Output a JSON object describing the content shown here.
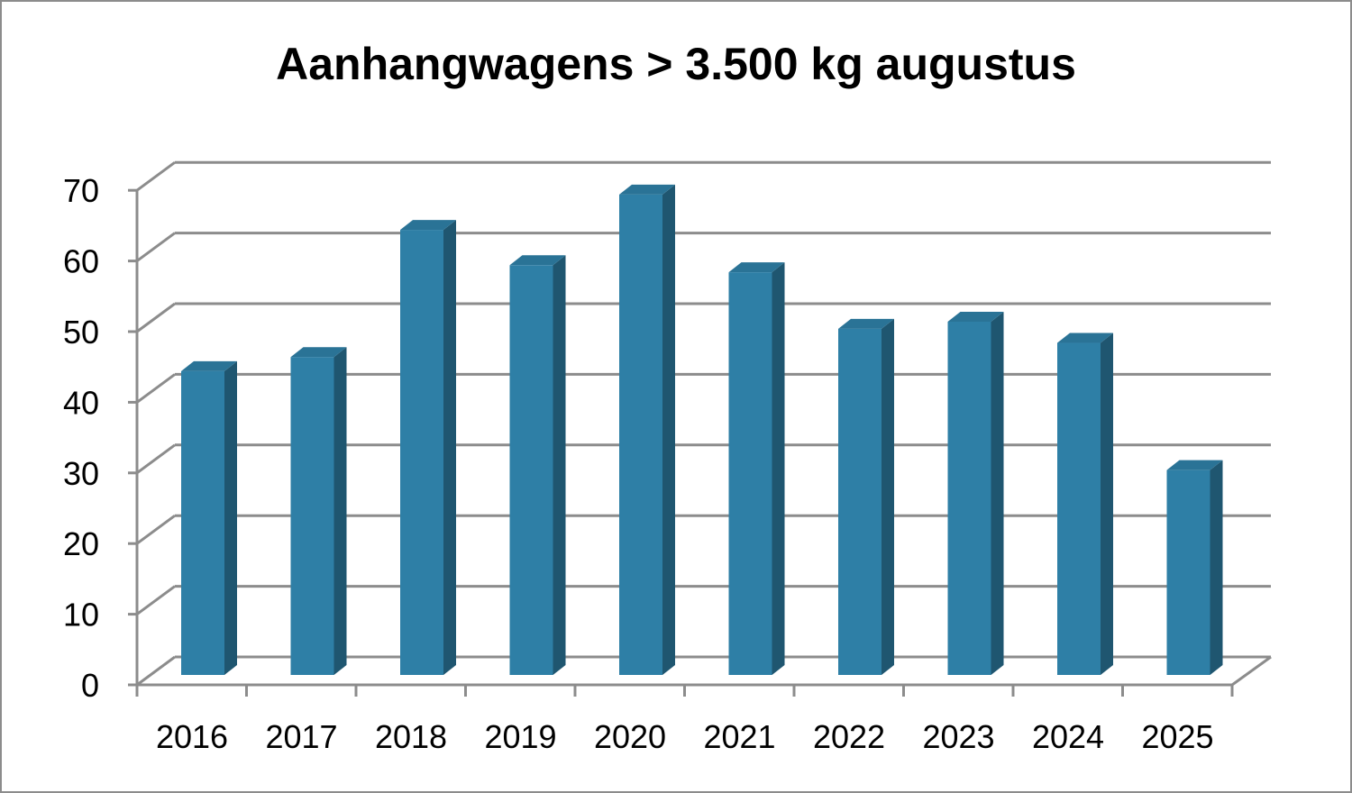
{
  "chart_data": {
    "type": "bar",
    "title": "Aanhangwagens > 3.500 kg augustus",
    "categories": [
      "2016",
      "2017",
      "2018",
      "2019",
      "2020",
      "2021",
      "2022",
      "2023",
      "2024",
      "2025"
    ],
    "values": [
      43,
      45,
      63,
      58,
      68,
      57,
      49,
      50,
      47,
      29
    ],
    "ylim": [
      0,
      70
    ],
    "yticks": [
      "0",
      "10",
      "20",
      "30",
      "40",
      "50",
      "60",
      "70"
    ],
    "grid": true,
    "legend": "none",
    "style": "3d-column"
  },
  "colors": {
    "bar_front": "#2e7fa6",
    "bar_side": "#1f5670",
    "bar_top": "#2a7396",
    "grid": "#8c8c8c",
    "frame": "#8c8c8c"
  }
}
